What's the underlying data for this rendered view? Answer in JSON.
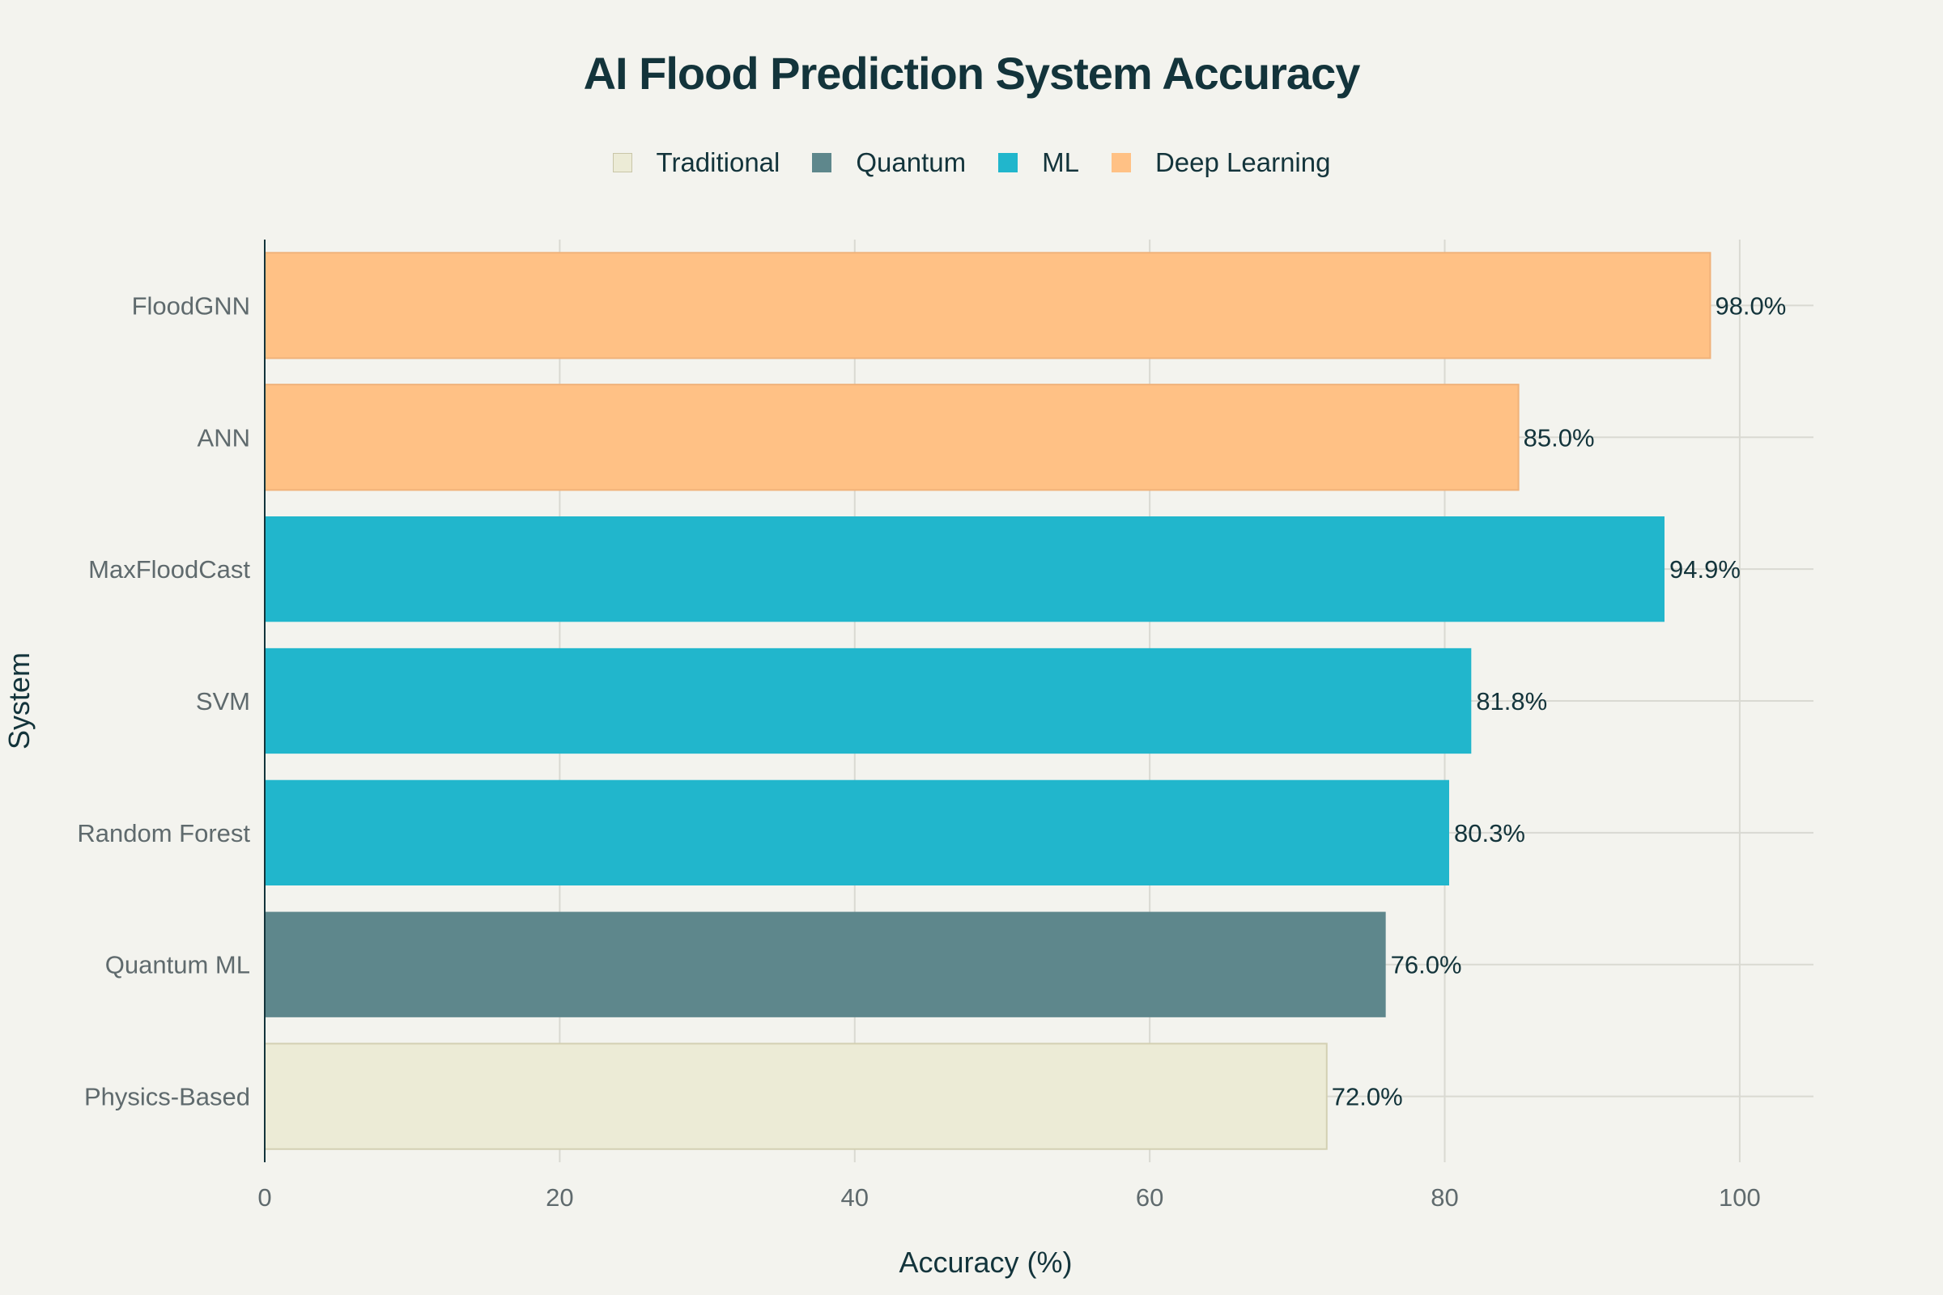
{
  "chart_data": {
    "type": "bar",
    "orientation": "horizontal",
    "title": "AI Flood Prediction System Accuracy",
    "xlabel": "Accuracy (%)",
    "ylabel": "System",
    "xlim": [
      0,
      105
    ],
    "xticks": [
      0,
      20,
      40,
      60,
      80,
      100
    ],
    "grid": true,
    "legend_position": "top-center",
    "legend": [
      {
        "name": "Traditional",
        "color": "#ecebd6"
      },
      {
        "name": "Quantum",
        "color": "#5e878c"
      },
      {
        "name": "ML",
        "color": "#21b6cc"
      },
      {
        "name": "Deep Learning",
        "color": "#ffc185"
      }
    ],
    "categories": [
      "FloodGNN",
      "ANN",
      "MaxFloodCast",
      "SVM",
      "Random Forest",
      "Quantum ML",
      "Physics-Based"
    ],
    "values": [
      98.0,
      85.0,
      94.9,
      81.8,
      80.3,
      76.0,
      72.0
    ],
    "value_labels": [
      "98.0%",
      "85.0%",
      "94.9%",
      "81.8%",
      "80.3%",
      "76.0%",
      "72.0%"
    ],
    "groups": [
      "Deep Learning",
      "Deep Learning",
      "ML",
      "ML",
      "ML",
      "Quantum",
      "Traditional"
    ]
  }
}
